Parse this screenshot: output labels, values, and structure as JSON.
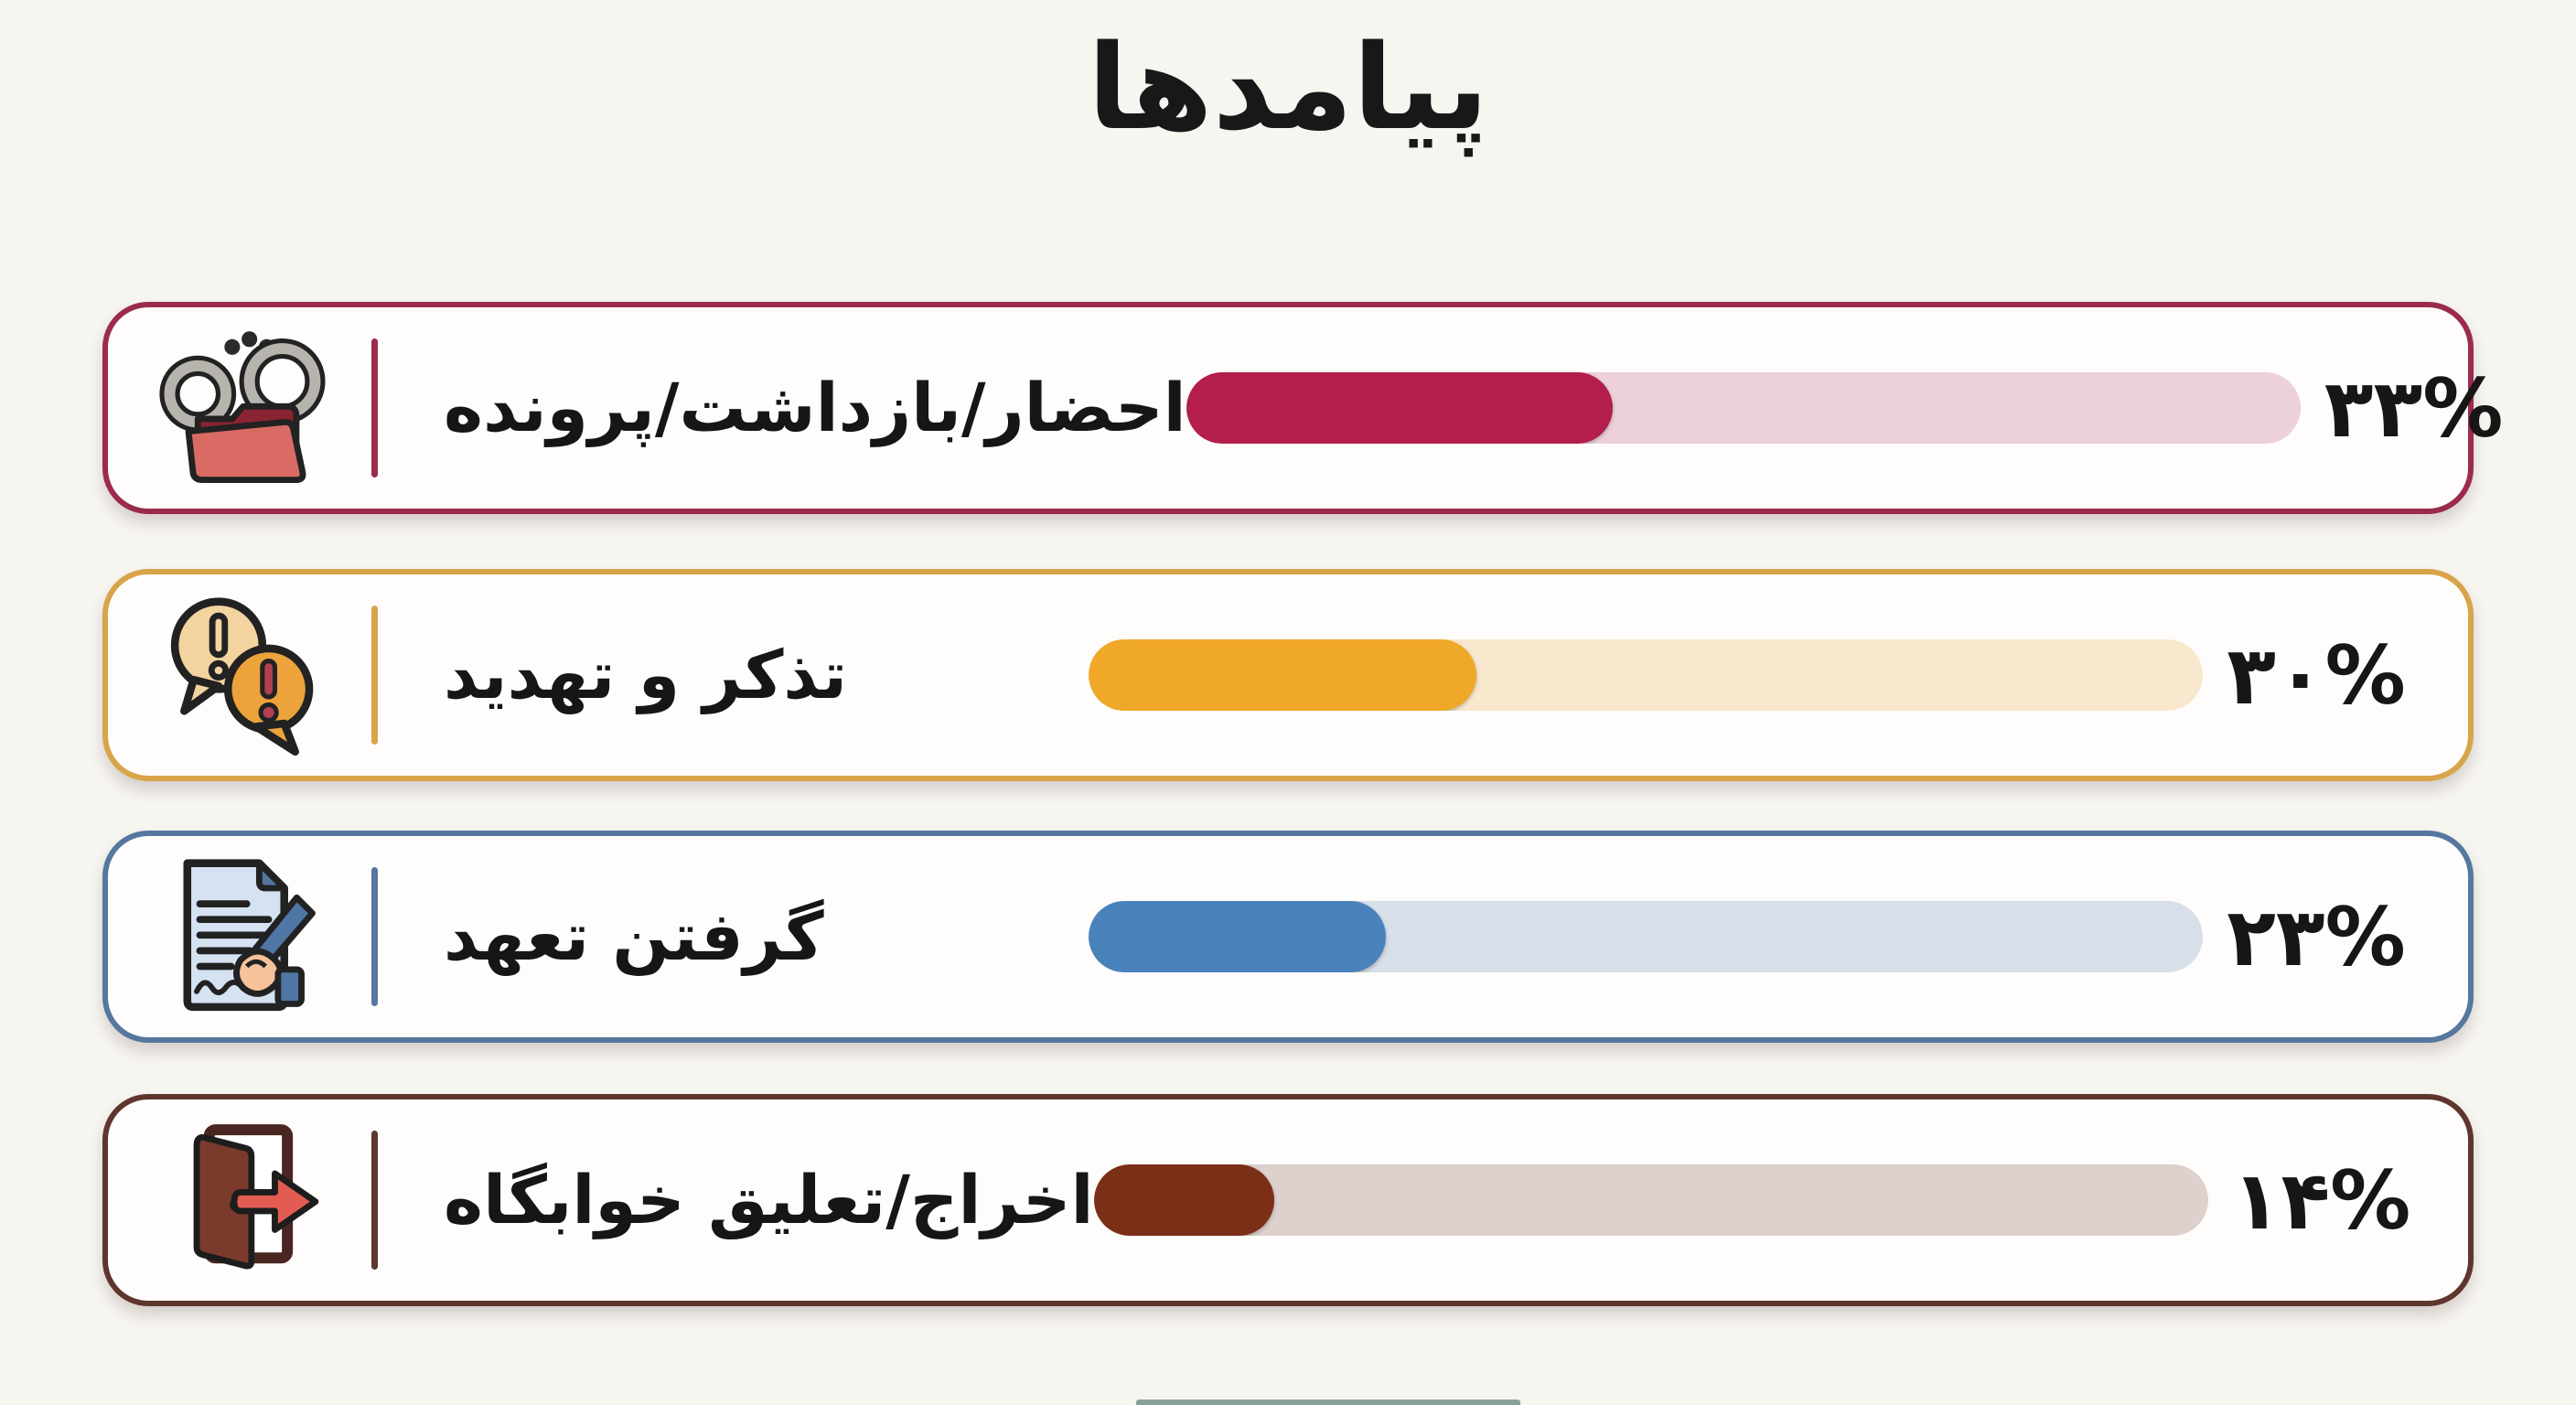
{
  "title": "پیامدها",
  "chart_data": {
    "type": "bar",
    "orientation": "horizontal",
    "title": "پیامدها",
    "unit": "%",
    "xlim": [
      0,
      100
    ],
    "categories": [
      "احضار/بازداشت/پرونده",
      "تذکر و تهدید",
      "گرفتن تعهد",
      "اخراج/تعلیق خوابگاه"
    ],
    "values": [
      33,
      30,
      23,
      14
    ],
    "value_labels": [
      "۳۳%",
      "۳۰%",
      "۲۳%",
      "۱۴%"
    ]
  },
  "rows": [
    {
      "label": "احضار/بازداشت/پرونده",
      "value": 33,
      "value_label": "۳۳%",
      "icon": "handcuffs-folder-icon",
      "accent": "#9b2b4d",
      "bar_fill": "#b31e4b",
      "bar_track": "#ecd0da"
    },
    {
      "label": "تذکر و تهدید",
      "value": 30,
      "value_label": "۳۰%",
      "icon": "warning-bubbles-icon",
      "accent": "#d8a44a",
      "bar_fill": "#efa827",
      "bar_track": "#f8e8cd"
    },
    {
      "label": "گرفتن تعهد",
      "value": 23,
      "value_label": "۲۳%",
      "icon": "signing-document-icon",
      "accent": "#56789f",
      "bar_fill": "#4a82bc",
      "bar_track": "#d7dfe9"
    },
    {
      "label": "اخراج/تعلیق خوابگاه",
      "value": 14,
      "value_label": "۱۴%",
      "icon": "exit-door-icon",
      "accent": "#5e362d",
      "bar_fill": "#7c2f17",
      "bar_track": "#ddd0cd"
    }
  ]
}
